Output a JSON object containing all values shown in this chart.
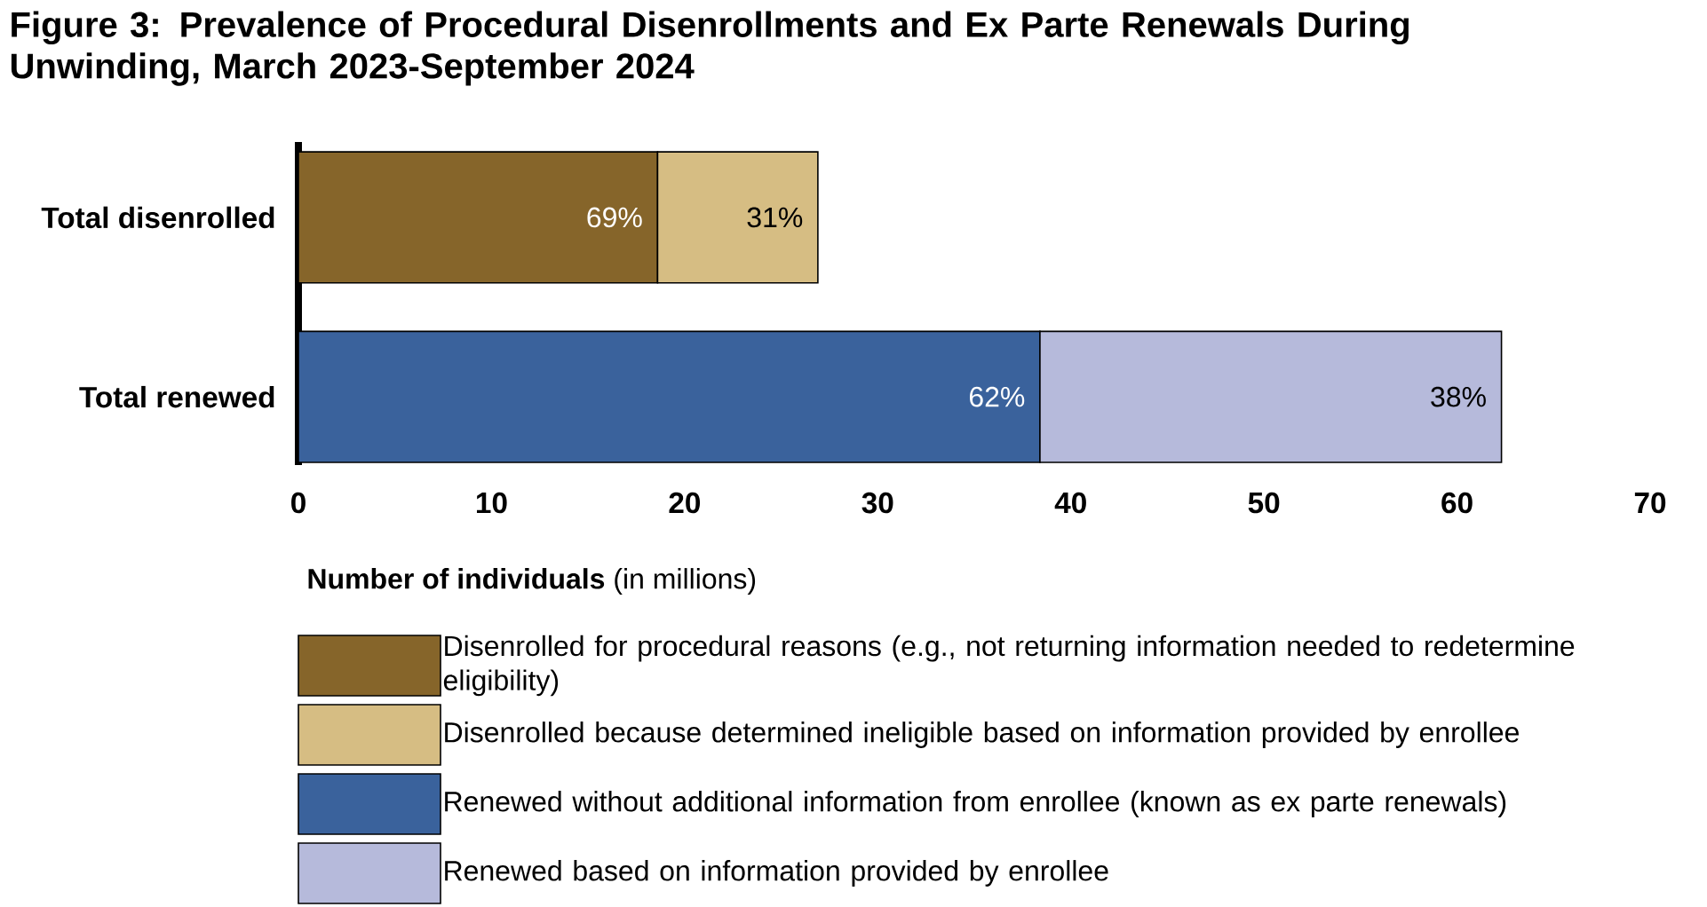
{
  "chart_data": {
    "type": "bar",
    "orientation": "horizontal",
    "stacked": true,
    "title": "Figure 3: Prevalence of Procedural Disenrollments and Ex Parte Renewals During Unwinding, March 2023-September 2024",
    "xlabel": "**Number of individuals** (in millions)",
    "categories": [
      "Total disenrolled",
      "Total renewed"
    ],
    "series": [
      {
        "name": "Disenrolled for procedural reasons (e.g., not returning information needed to redetermine eligibility)",
        "color": "#86652a",
        "values": [
          18.6,
          null
        ]
      },
      {
        "name": "Disenrolled because determined ineligible based on information provided by enrollee",
        "color": "#d6bd83",
        "values": [
          8.3,
          null
        ]
      },
      {
        "name": "Renewed without additional information from enrollee (known as ex parte renewals)",
        "color": "#3a629c",
        "values": [
          null,
          38.4
        ]
      },
      {
        "name": "Renewed based on information provided by enrollee",
        "color": "#b6badb",
        "values": [
          null,
          23.9
        ]
      }
    ],
    "annotations": [
      {
        "text": "69%",
        "x": 18.6,
        "y": "Total disenrolled"
      },
      {
        "text": "31%",
        "x": 26.9,
        "y": "Total disenrolled"
      },
      {
        "text": "62%",
        "x": 38.4,
        "y": "Total renewed"
      },
      {
        "text": "38%",
        "x": 62.3,
        "y": "Total renewed"
      }
    ],
    "xlim": [
      0,
      70
    ],
    "xticks": [
      0,
      10,
      20,
      30,
      40,
      50,
      60,
      70
    ],
    "grid": false,
    "legend": "bottom"
  }
}
